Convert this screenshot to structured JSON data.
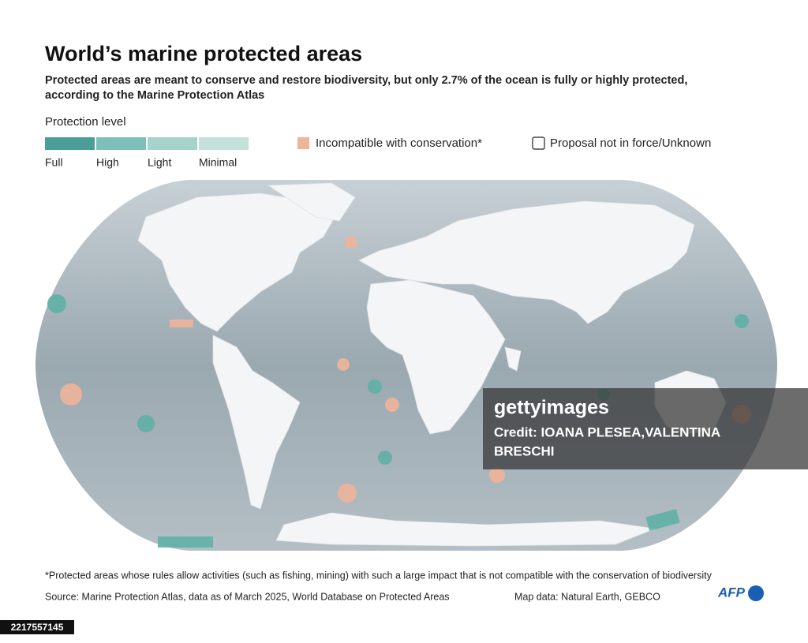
{
  "header": {
    "title": "World’s marine protected areas",
    "subtitle_line1": "Protected areas are meant to conserve and restore biodiversity, but only 2.7% of the ocean is fully or highly protected,",
    "subtitle_line2": "according to the Marine Protection Atlas"
  },
  "legend": {
    "title": "Protection level",
    "levels": [
      {
        "label": "Full",
        "color": "#4a9e97"
      },
      {
        "label": "High",
        "color": "#7cc0b7"
      },
      {
        "label": "Light",
        "color": "#a5d3ca"
      },
      {
        "label": "Minimal",
        "color": "#c3e2da"
      }
    ],
    "incompatible": {
      "label": "Incompatible with conservation*",
      "color": "#f0b49a"
    },
    "proposal": {
      "label": "Proposal not in force/Unknown"
    }
  },
  "footnote": "*Protected areas whose rules allow activities (such as fishing, mining) with such a large impact that is not compatible with the conservation of biodiversity",
  "source": "Source: Marine Protection Atlas, data as of March 2025, World Database on Protected Areas",
  "map_credit": "Map data: Natural Earth, GEBCO",
  "logo": "AFP",
  "watermark": {
    "brand": "gettyimages",
    "credit_line1": "Credit: IOANA PLESEA,VALENTINA",
    "credit_line2": "BRESCHI"
  },
  "image_id": "2217557145"
}
